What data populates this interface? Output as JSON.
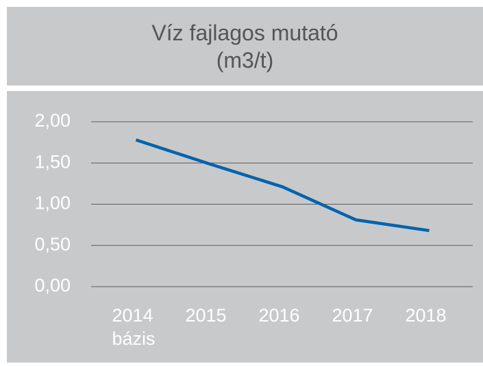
{
  "chart_data": {
    "type": "line",
    "title": "Víz fajlagos mutató",
    "subtitle": "(m3/t)",
    "categories": [
      "2014 bázis",
      "2015",
      "2016",
      "2017",
      "2018"
    ],
    "series": [
      {
        "name": "Víz fajlagos mutató",
        "color": "#0063ad",
        "values": [
          1.78,
          1.49,
          1.21,
          0.81,
          0.68
        ]
      }
    ],
    "ylim": [
      0,
      2
    ],
    "yticks": [
      {
        "value": 0,
        "label": "0,00"
      },
      {
        "value": 0.5,
        "label": "0,50"
      },
      {
        "value": 1,
        "label": "1,00"
      },
      {
        "value": 1.5,
        "label": "1,50"
      },
      {
        "value": 2,
        "label": "2,00"
      }
    ],
    "grid": true
  }
}
